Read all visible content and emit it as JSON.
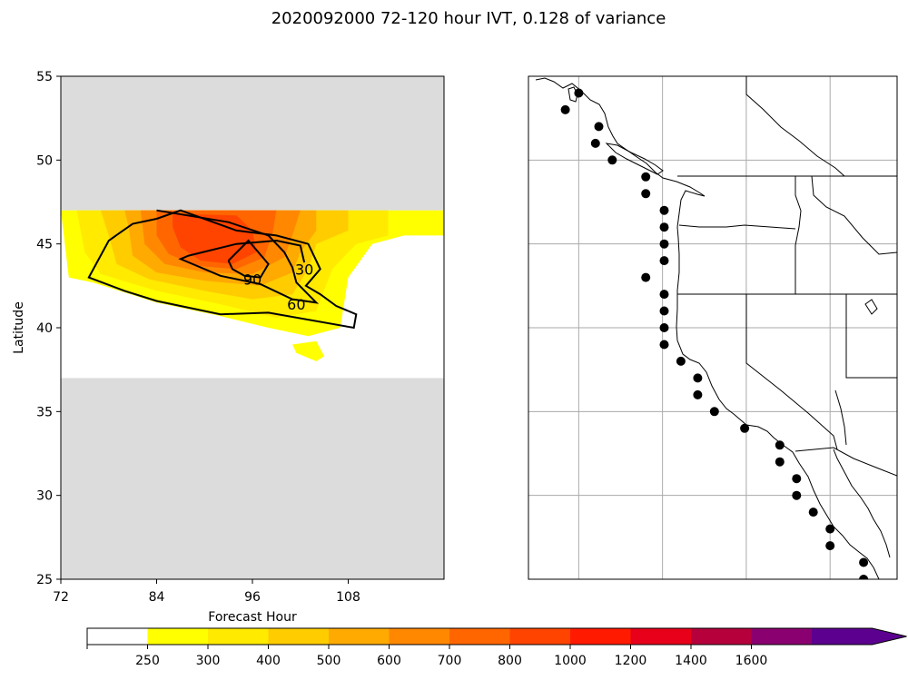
{
  "title": "2020092000 72-120 hour IVT, 0.128 of variance",
  "chart_data": [
    {
      "type": "contour",
      "xlabel": "Forecast Hour",
      "ylabel": "Latitude",
      "xlim": [
        72,
        120
      ],
      "ylim": [
        25,
        55
      ],
      "xticks": [
        72,
        84,
        96,
        108
      ],
      "yticks": [
        25,
        30,
        35,
        40,
        45,
        50,
        55
      ],
      "masked_bands": [
        [
          47,
          55
        ],
        [
          25,
          37
        ]
      ],
      "fill_colors": [
        "#ffff00",
        "#ffea00",
        "#ffcc00",
        "#ffaa00",
        "#ff8800",
        "#ff6600",
        "#ff4400",
        "#ff1a00",
        "#e8001a"
      ],
      "filled_levels": [
        {
          "level": 250,
          "polygon": [
            [
              72,
              47
            ],
            [
              120,
              47
            ],
            [
              120,
              45.5
            ],
            [
              115,
              45.5
            ],
            [
              111,
              45
            ],
            [
              108,
              43
            ],
            [
              107,
              40
            ],
            [
              103,
              39.5
            ],
            [
              98,
              40
            ],
            [
              92,
              40.7
            ],
            [
              84,
              41.5
            ],
            [
              76,
              42.7
            ],
            [
              73,
              43
            ]
          ]
        },
        {
          "level": 300,
          "polygon": [
            [
              74,
              47
            ],
            [
              113,
              47
            ],
            [
              113,
              45.5
            ],
            [
              109,
              45
            ],
            [
              106,
              43.5
            ],
            [
              104,
              41
            ],
            [
              99,
              40.6
            ],
            [
              92,
              41.4
            ],
            [
              84,
              42.2
            ],
            [
              77,
              43.2
            ],
            [
              75,
              44.5
            ]
          ]
        },
        {
          "level": 400,
          "polygon": [
            [
              77,
              47
            ],
            [
              108,
              47
            ],
            [
              108,
              45.8
            ],
            [
              104,
              45
            ],
            [
              103,
              43.5
            ],
            [
              101,
              42
            ],
            [
              96,
              41.7
            ],
            [
              90,
              42.2
            ],
            [
              83,
              42.9
            ],
            [
              79,
              43.8
            ],
            [
              78,
              45.5
            ]
          ]
        },
        {
          "level": 500,
          "polygon": [
            [
              80,
              47
            ],
            [
              104,
              47
            ],
            [
              104,
              45.8
            ],
            [
              102,
              44.5
            ],
            [
              101,
              43.3
            ],
            [
              97,
              42.5
            ],
            [
              90,
              42.8
            ],
            [
              84,
              43.3
            ],
            [
              81,
              44.3
            ],
            [
              80.5,
              46
            ]
          ]
        },
        {
          "level": 600,
          "polygon": [
            [
              82,
              47
            ],
            [
              102,
              47
            ],
            [
              101,
              45.5
            ],
            [
              100,
              44.2
            ],
            [
              96,
              43.2
            ],
            [
              90,
              43.3
            ],
            [
              85,
              43.8
            ],
            [
              82.5,
              45
            ]
          ]
        },
        {
          "level": 700,
          "polygon": [
            [
              84,
              47
            ],
            [
              99,
              47
            ],
            [
              98.5,
              45.6
            ],
            [
              97.5,
              44.2
            ],
            [
              94,
              43.5
            ],
            [
              89,
              43.7
            ],
            [
              85.5,
              44.4
            ],
            [
              84,
              45.5
            ]
          ]
        },
        {
          "level": 800,
          "polygon": [
            [
              86,
              46.8
            ],
            [
              94,
              46.7
            ],
            [
              96,
              45.8
            ],
            [
              96.5,
              44.5
            ],
            [
              93.5,
              43.8
            ],
            [
              89.5,
              44
            ],
            [
              87,
              44.8
            ],
            [
              86,
              46
            ]
          ]
        },
        {
          "level": 250,
          "polygon": [
            [
              101,
              39
            ],
            [
              104,
              39.2
            ],
            [
              105,
              38.3
            ],
            [
              104,
              38
            ],
            [
              101.5,
              38.5
            ]
          ]
        }
      ],
      "contour_lines": [
        {
          "level": 30,
          "label": "30",
          "label_at": [
            102.5,
            43.5
          ],
          "points": [
            [
              84,
              46.5
            ],
            [
              87,
              47
            ],
            [
              94,
              45.8
            ],
            [
              99,
              45.5
            ],
            [
              103,
              45
            ],
            [
              104.5,
              43.5
            ],
            [
              102.7,
              42.5
            ],
            [
              104.5,
              42
            ],
            [
              106.5,
              41.3
            ],
            [
              109,
              40.8
            ],
            [
              108.7,
              40
            ],
            [
              98,
              40.9
            ],
            [
              92,
              40.8
            ],
            [
              84,
              41.6
            ],
            [
              80,
              42.2
            ],
            [
              75.5,
              43
            ],
            [
              78,
              45.2
            ],
            [
              81,
              46.2
            ],
            [
              84,
              46.5
            ]
          ]
        },
        {
          "level": 60,
          "label": "60",
          "label_at": [
            101.5,
            41.4
          ],
          "points": [
            [
              84,
              47
            ],
            [
              93,
              46.3
            ],
            [
              98,
              45.5
            ],
            [
              100,
              44.5
            ],
            [
              101,
              43.6
            ],
            [
              101.5,
              42.7
            ],
            [
              104,
              41.5
            ],
            [
              101,
              41.7
            ],
            [
              97,
              42.6
            ],
            [
              92,
              43.1
            ],
            [
              87,
              44.1
            ],
            [
              88,
              44.3
            ],
            [
              94,
              45
            ],
            [
              99,
              45.2
            ],
            [
              102,
              44.9
            ],
            [
              102.5,
              43.9
            ]
          ]
        },
        {
          "level": 90,
          "label": "90",
          "label_at": [
            96,
            42.9
          ],
          "points": [
            [
              93,
              44
            ],
            [
              95.5,
              45.2
            ],
            [
              98,
              43.8
            ],
            [
              97,
              43
            ],
            [
              95,
              43.1
            ],
            [
              93.5,
              43.5
            ],
            [
              93,
              44
            ]
          ]
        }
      ]
    },
    {
      "type": "map",
      "extent": {
        "lon": [
          -133,
          -111
        ],
        "lat": [
          25,
          55
        ]
      },
      "gridlines": {
        "lon": [
          -130,
          -125,
          -120,
          -115
        ],
        "lat": [
          25,
          30,
          35,
          40,
          45,
          50,
          55
        ]
      },
      "points": [
        [
          -130,
          54
        ],
        [
          -130.8,
          53
        ],
        [
          -128.8,
          52
        ],
        [
          -129,
          51
        ],
        [
          -128,
          50
        ],
        [
          -126,
          49
        ],
        [
          -126,
          48
        ],
        [
          -124.9,
          47
        ],
        [
          -124.9,
          46
        ],
        [
          -124.9,
          45
        ],
        [
          -124.9,
          44
        ],
        [
          -126,
          43
        ],
        [
          -124.9,
          42
        ],
        [
          -124.9,
          41
        ],
        [
          -124.9,
          40
        ],
        [
          -124.9,
          39
        ],
        [
          -123.9,
          38
        ],
        [
          -122.9,
          37
        ],
        [
          -122.9,
          36
        ],
        [
          -121.9,
          35
        ],
        [
          -120.1,
          34
        ],
        [
          -118,
          33
        ],
        [
          -118,
          32
        ],
        [
          -117,
          31
        ],
        [
          -117,
          30
        ],
        [
          -116,
          29
        ],
        [
          -115,
          28
        ],
        [
          -115,
          27
        ],
        [
          -113,
          26
        ],
        [
          -113,
          25
        ]
      ]
    },
    {
      "type": "colorbar",
      "ticks": [
        "250",
        "300",
        "400",
        "500",
        "600",
        "700",
        "800",
        "1000",
        "1200",
        "1400",
        "1600"
      ],
      "colors": [
        "#ffffff",
        "#ffff00",
        "#ffea00",
        "#ffcc00",
        "#ffaa00",
        "#ff8800",
        "#ff6600",
        "#ff4400",
        "#ff1a00",
        "#e8001a",
        "#b5003c",
        "#8a0070",
        "#5c0090"
      ],
      "extend": "max"
    }
  ]
}
